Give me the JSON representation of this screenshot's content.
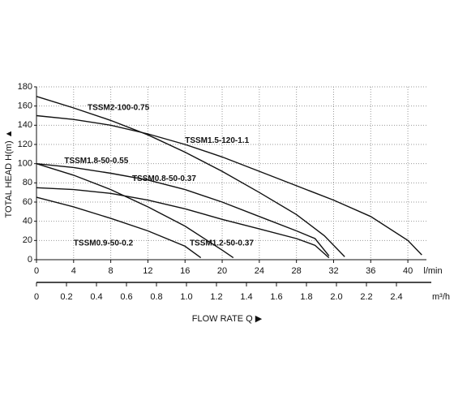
{
  "chart_data": {
    "type": "line",
    "xlabel": "FLOW RATE Q ▶",
    "ylabel": "TOTAL HEAD H(m) ▲",
    "x_unit": "l/min",
    "x2_unit": "m³/h",
    "xlim": [
      0,
      42
    ],
    "xticks": [
      0,
      4,
      8,
      12,
      16,
      20,
      24,
      28,
      32,
      36,
      40
    ],
    "ylim": [
      0,
      180
    ],
    "yticks": [
      0,
      20,
      40,
      60,
      80,
      100,
      120,
      140,
      160,
      180
    ],
    "x2lim": [
      0,
      2.6
    ],
    "x2ticks": [
      0,
      0.2,
      0.4,
      0.6,
      0.8,
      {
        "value": 1,
        "label": "1.0"
      },
      1.2,
      1.4,
      1.6,
      1.8,
      {
        "value": 2,
        "label": "2.0"
      },
      2.2,
      2.4
    ],
    "grid": true,
    "series": [
      {
        "name": "TSSM2-100-0.75",
        "color": "#111111",
        "x": [
          0,
          4,
          8,
          12,
          16,
          20,
          24,
          28,
          31,
          33.2
        ],
        "values": [
          170,
          158,
          145,
          130,
          112,
          92,
          70,
          47,
          25,
          3
        ]
      },
      {
        "name": "TSSM1.5-120-1.1",
        "color": "#111111",
        "x": [
          0,
          4,
          8,
          12,
          16,
          20,
          24,
          28,
          32,
          36,
          40,
          41.5
        ],
        "values": [
          150,
          146,
          140,
          131,
          120,
          107,
          92,
          77,
          62,
          45,
          20,
          5
        ]
      },
      {
        "name": "TSSM1.8-50-0.55",
        "color": "#111111",
        "x": [
          0,
          4,
          8,
          12,
          16,
          20,
          24,
          28,
          30,
          31.5
        ],
        "values": [
          100,
          96,
          90,
          83,
          73,
          60,
          45,
          30,
          22,
          4
        ]
      },
      {
        "name": "TSSM0.8-50-0.37",
        "color": "#111111",
        "x": [
          0,
          4,
          8,
          12,
          16,
          20,
          24,
          28,
          30,
          31.5
        ],
        "values": [
          75,
          73,
          69,
          62,
          53,
          42,
          32,
          22,
          15,
          2
        ]
      },
      {
        "name": "TSSM1.2-50-0.37",
        "color": "#111111",
        "x": [
          0,
          4,
          8,
          12,
          16,
          20,
          21.2
        ],
        "values": [
          100,
          88,
          73,
          55,
          35,
          10,
          2
        ]
      },
      {
        "name": "TSSM0.9-50-0.2",
        "color": "#111111",
        "x": [
          0,
          4,
          8,
          12,
          16,
          17.7
        ],
        "values": [
          65,
          55,
          43,
          30,
          14,
          2
        ]
      }
    ]
  }
}
